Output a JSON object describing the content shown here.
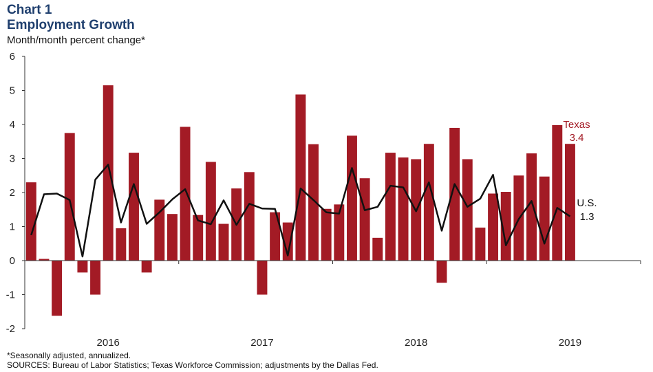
{
  "header": {
    "label": "Chart 1",
    "title": "Employment Growth",
    "subtitle": "Month/month  percent change*"
  },
  "footer": {
    "note": "*Seasonally adjusted, annualized.",
    "sources": "SOURCES: Bureau  of Labor Statistics; Texas Workforce  Commission;  adjustments by the Dallas Fed."
  },
  "colors": {
    "texas_bar": "#a31b25",
    "us_line": "#111111",
    "title": "#1f3f6e"
  },
  "chart_data": {
    "type": "bar",
    "title": "Employment Growth",
    "ylabel": "Month/month percent change*",
    "ylim": [
      -2,
      6
    ],
    "yticks": [
      "6",
      "5",
      "4",
      "3",
      "2",
      "1",
      "0",
      "-1",
      "-2"
    ],
    "x_year_labels": [
      {
        "label": "2016",
        "index": 6
      },
      {
        "label": "2017",
        "index": 18
      },
      {
        "label": "2018",
        "index": 30
      },
      {
        "label": "2019",
        "index": 42
      }
    ],
    "x_periods": 48,
    "grid": false,
    "series": [
      {
        "name": "Texas",
        "type": "bar",
        "values": [
          2.3,
          0.05,
          -1.62,
          3.75,
          -0.35,
          -1.0,
          5.15,
          0.95,
          3.17,
          -0.35,
          1.79,
          1.37,
          3.93,
          1.34,
          2.9,
          1.08,
          2.12,
          2.6,
          -1.0,
          1.42,
          1.12,
          4.88,
          3.42,
          1.52,
          1.65,
          3.67,
          2.42,
          0.67,
          3.17,
          3.03,
          2.98,
          3.43,
          -0.65,
          3.9,
          2.98,
          0.97,
          1.97,
          2.02,
          2.5,
          3.15,
          2.47,
          3.98,
          3.43
        ]
      },
      {
        "name": "U.S.",
        "type": "line",
        "values": [
          0.75,
          1.95,
          1.97,
          1.78,
          0.12,
          2.38,
          2.82,
          1.12,
          2.25,
          1.08,
          1.42,
          1.8,
          2.1,
          1.18,
          1.07,
          1.77,
          1.05,
          1.67,
          1.53,
          1.52,
          0.15,
          2.12,
          1.78,
          1.42,
          1.38,
          2.72,
          1.48,
          1.58,
          2.2,
          2.15,
          1.45,
          2.3,
          0.88,
          2.25,
          1.58,
          1.82,
          2.52,
          0.45,
          1.22,
          1.75,
          0.5,
          1.55,
          1.3
        ]
      }
    ],
    "annotations": [
      {
        "series": "Texas",
        "label": "Texas",
        "value": "3.4"
      },
      {
        "series": "U.S.",
        "label": "U.S.",
        "value": "1.3"
      }
    ]
  }
}
